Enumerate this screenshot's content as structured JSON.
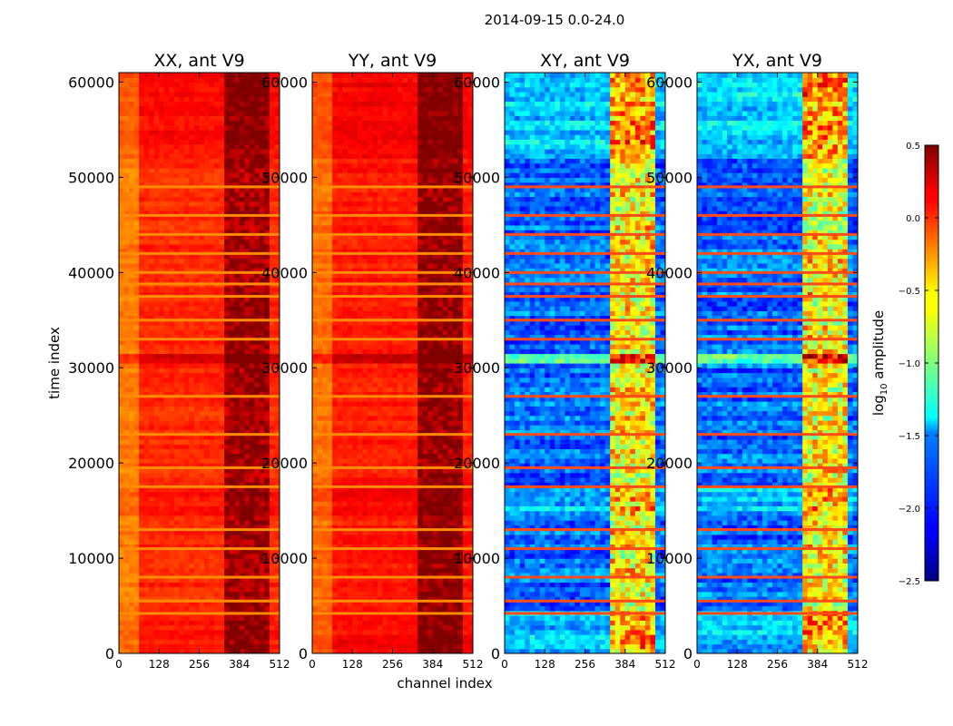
{
  "figure": {
    "title": "2014-09-15 0.0-24.0"
  },
  "chart_data": {
    "type": "heatmap",
    "title": "2014-09-15 0.0-24.0",
    "xlabel": "channel index",
    "ylabel": "time index",
    "xlim": [
      0,
      512
    ],
    "ylim": [
      0,
      61000
    ],
    "xticks": [
      0,
      128,
      256,
      384,
      512
    ],
    "yticks": [
      0,
      10000,
      20000,
      30000,
      40000,
      50000,
      60000
    ],
    "colorbar": {
      "label": "log₁₀ amplitude",
      "label_main": "log",
      "label_sub": "10",
      "label_rest": " amplitude",
      "range": [
        -2.5,
        0.5
      ],
      "ticks": [
        0.5,
        0.0,
        -0.5,
        -1.0,
        -1.5,
        -2.0,
        -2.5
      ],
      "tick_labels": [
        "0.5",
        "0.0",
        "−0.5",
        "−1.0",
        "−1.5",
        "−2.0",
        "−2.5"
      ],
      "colormap": "jet"
    },
    "panels": [
      {
        "title": "XX, ant V9",
        "kind": "parallel",
        "base_level": 0.0,
        "high_band_level": 0.4
      },
      {
        "title": "YY, ant V9",
        "kind": "parallel",
        "base_level": 0.05,
        "high_band_level": 0.45
      },
      {
        "title": "XY, ant V9",
        "kind": "cross",
        "base_level": -1.8,
        "high_band_level": -0.6
      },
      {
        "title": "YX, ant V9",
        "kind": "cross",
        "base_level": -1.8,
        "high_band_level": -0.6
      }
    ],
    "features": {
      "bright_channel_range": [
        330,
        480
      ],
      "flagged_time_bands": [
        {
          "start": 30200,
          "end": 31500,
          "level": 0.5
        },
        {
          "start": 0,
          "end": 4200,
          "level": 0.15
        },
        {
          "start": 52000,
          "end": 61000,
          "level": 0.2
        },
        {
          "start": 14500,
          "end": 17500,
          "level": 0.15
        }
      ],
      "red_lines_time": [
        4200,
        5500,
        8000,
        11000,
        13000,
        17500,
        19500,
        23000,
        27000,
        33000,
        35000,
        37500,
        38800,
        40000,
        42000,
        44000,
        46000,
        49000
      ]
    }
  }
}
